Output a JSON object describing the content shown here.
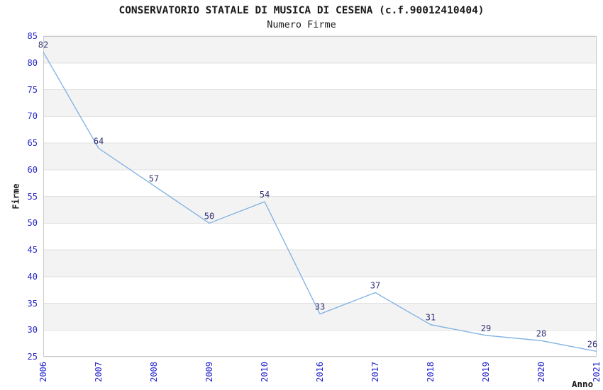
{
  "title": "CONSERVATORIO STATALE DI MUSICA DI CESENA (c.f.90012410404)",
  "subtitle": "Numero Firme",
  "chart_data": {
    "type": "line",
    "title": "CONSERVATORIO STATALE DI MUSICA DI CESENA (c.f.90012410404)",
    "subtitle": "Numero Firme",
    "x": [
      "2006",
      "2007",
      "2008",
      "2009",
      "2010",
      "2016",
      "2017",
      "2018",
      "2019",
      "2020",
      "2021"
    ],
    "values": [
      82,
      64,
      57,
      50,
      54,
      33,
      37,
      31,
      29,
      28,
      26
    ],
    "xlabel": "Anno",
    "ylabel": "Firme",
    "ylim": [
      25,
      85
    ],
    "yticks": [
      85,
      80,
      75,
      70,
      65,
      60,
      55,
      50,
      45,
      40,
      35,
      30,
      25
    ],
    "grid": true,
    "banded_background": true,
    "legend": "none",
    "colors": {
      "line": "#7EB0E2",
      "tick_label": "#2424CC",
      "data_label": "#333377",
      "band": "#F3F3F3",
      "gridline": "#E2E2E2",
      "border": "#C9C9C9",
      "text": "#1A1A1A"
    }
  }
}
